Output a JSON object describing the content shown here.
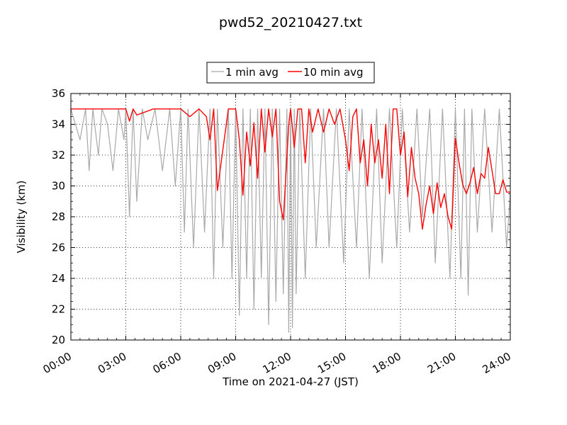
{
  "chart_data": {
    "type": "line",
    "title": "pwd52_20210427.txt",
    "xlabel": "Time on 2021-04-27 (JST)",
    "ylabel": "Visibility (km)",
    "xlim": [
      "00:00",
      "24:00"
    ],
    "ylim": [
      20,
      36
    ],
    "x_ticks": [
      "00:00",
      "03:00",
      "06:00",
      "09:00",
      "12:00",
      "15:00",
      "18:00",
      "21:00",
      "24:00"
    ],
    "y_ticks": [
      "20",
      "22",
      "24",
      "26",
      "28",
      "30",
      "32",
      "34",
      "36"
    ],
    "grid": true,
    "legend_position": "top-center",
    "series": [
      {
        "name": "1 min avg",
        "color": "#a9a9a9",
        "x_hours": [
          0,
          0.5,
          0.8,
          1,
          1.2,
          1.5,
          1.7,
          2,
          2.3,
          2.6,
          2.9,
          3.0,
          3.2,
          3.4,
          3.6,
          3.9,
          4.2,
          4.6,
          5.0,
          5.4,
          5.7,
          6.0,
          6.2,
          6.4,
          6.7,
          7.0,
          7.3,
          7.6,
          7.8,
          8.0,
          8.3,
          8.6,
          8.8,
          9.0,
          9.2,
          9.4,
          9.6,
          9.8,
          10.0,
          10.2,
          10.4,
          10.6,
          10.8,
          11.0,
          11.2,
          11.4,
          11.6,
          11.8,
          11.9,
          12.0,
          12.1,
          12.2,
          12.3,
          12.5,
          12.8,
          13.1,
          13.4,
          13.8,
          14.1,
          14.5,
          14.9,
          15.2,
          15.6,
          15.9,
          16.3,
          16.7,
          17.0,
          17.4,
          17.8,
          18.1,
          18.5,
          18.9,
          19.2,
          19.6,
          19.9,
          20.3,
          20.7,
          21.0,
          21.3,
          21.5,
          21.7,
          21.9,
          22.2,
          22.6,
          23.0,
          23.4,
          23.8,
          24.0
        ],
        "values": [
          35,
          33,
          35,
          31,
          35,
          32,
          35,
          34,
          31,
          35,
          33,
          35,
          28,
          35,
          29,
          35,
          33,
          35,
          31,
          35,
          30,
          35,
          27,
          35,
          26,
          35,
          27,
          35,
          24,
          35,
          26,
          35,
          24,
          35,
          21.6,
          35,
          24,
          35,
          22,
          35,
          24,
          35,
          21,
          35,
          22.5,
          35,
          23,
          35,
          20.5,
          35,
          20.8,
          35,
          23,
          35,
          24,
          35,
          26,
          35,
          26,
          35,
          25,
          35,
          26,
          35,
          24,
          35,
          25,
          35,
          26,
          35,
          27,
          35,
          28,
          35,
          25,
          35,
          24,
          35,
          24,
          35,
          22.9,
          35,
          27,
          35,
          27,
          35,
          26,
          29.5
        ]
      },
      {
        "name": "10 min avg",
        "color": "#ff0000",
        "x_hours": [
          0,
          1,
          2,
          3.0,
          3.2,
          3.4,
          3.6,
          4.5,
          5.5,
          6.0,
          6.5,
          7.0,
          7.4,
          7.6,
          7.8,
          8.0,
          8.6,
          9.0,
          9.2,
          9.4,
          9.6,
          9.8,
          10.0,
          10.2,
          10.4,
          10.6,
          10.8,
          11.0,
          11.2,
          11.4,
          11.6,
          11.8,
          11.9,
          12.0,
          12.2,
          12.4,
          12.6,
          12.8,
          13.0,
          13.2,
          13.5,
          13.8,
          14.1,
          14.4,
          14.7,
          15.0,
          15.2,
          15.4,
          15.6,
          15.8,
          16.0,
          16.2,
          16.4,
          16.6,
          16.8,
          17.0,
          17.2,
          17.4,
          17.6,
          17.8,
          18.0,
          18.2,
          18.4,
          18.6,
          18.8,
          19.0,
          19.2,
          19.4,
          19.6,
          19.8,
          20.0,
          20.2,
          20.4,
          20.6,
          20.8,
          21.0,
          21.2,
          21.4,
          21.6,
          21.8,
          22.0,
          22.2,
          22.4,
          22.6,
          22.8,
          23.0,
          23.2,
          23.4,
          23.6,
          23.8,
          24.0
        ],
        "values": [
          35,
          35,
          35,
          35,
          34.2,
          35,
          34.6,
          35,
          35,
          35,
          34.5,
          35,
          34.5,
          33,
          35,
          29.7,
          35,
          35,
          33,
          29.4,
          33.5,
          31.3,
          34.1,
          30.5,
          35,
          32.2,
          35,
          33.2,
          35,
          29,
          27.8,
          31.8,
          34,
          35,
          32.5,
          35,
          35,
          31.5,
          35,
          33.5,
          35,
          33.5,
          35,
          34,
          35,
          33,
          31,
          34.5,
          35,
          31.5,
          33,
          30,
          34,
          31.5,
          33,
          30.5,
          34,
          29.5,
          35,
          35,
          32,
          33.5,
          29.3,
          32.5,
          30.5,
          29.5,
          27.2,
          28.8,
          30,
          28.2,
          30.2,
          28.6,
          29.5,
          28,
          27.2,
          33.1,
          31.5,
          30.1,
          29.5,
          30.2,
          31.2,
          29.5,
          30.8,
          30.5,
          32.5,
          31.0,
          29.5,
          29.5,
          30.4,
          29.6,
          29.6
        ]
      }
    ]
  }
}
